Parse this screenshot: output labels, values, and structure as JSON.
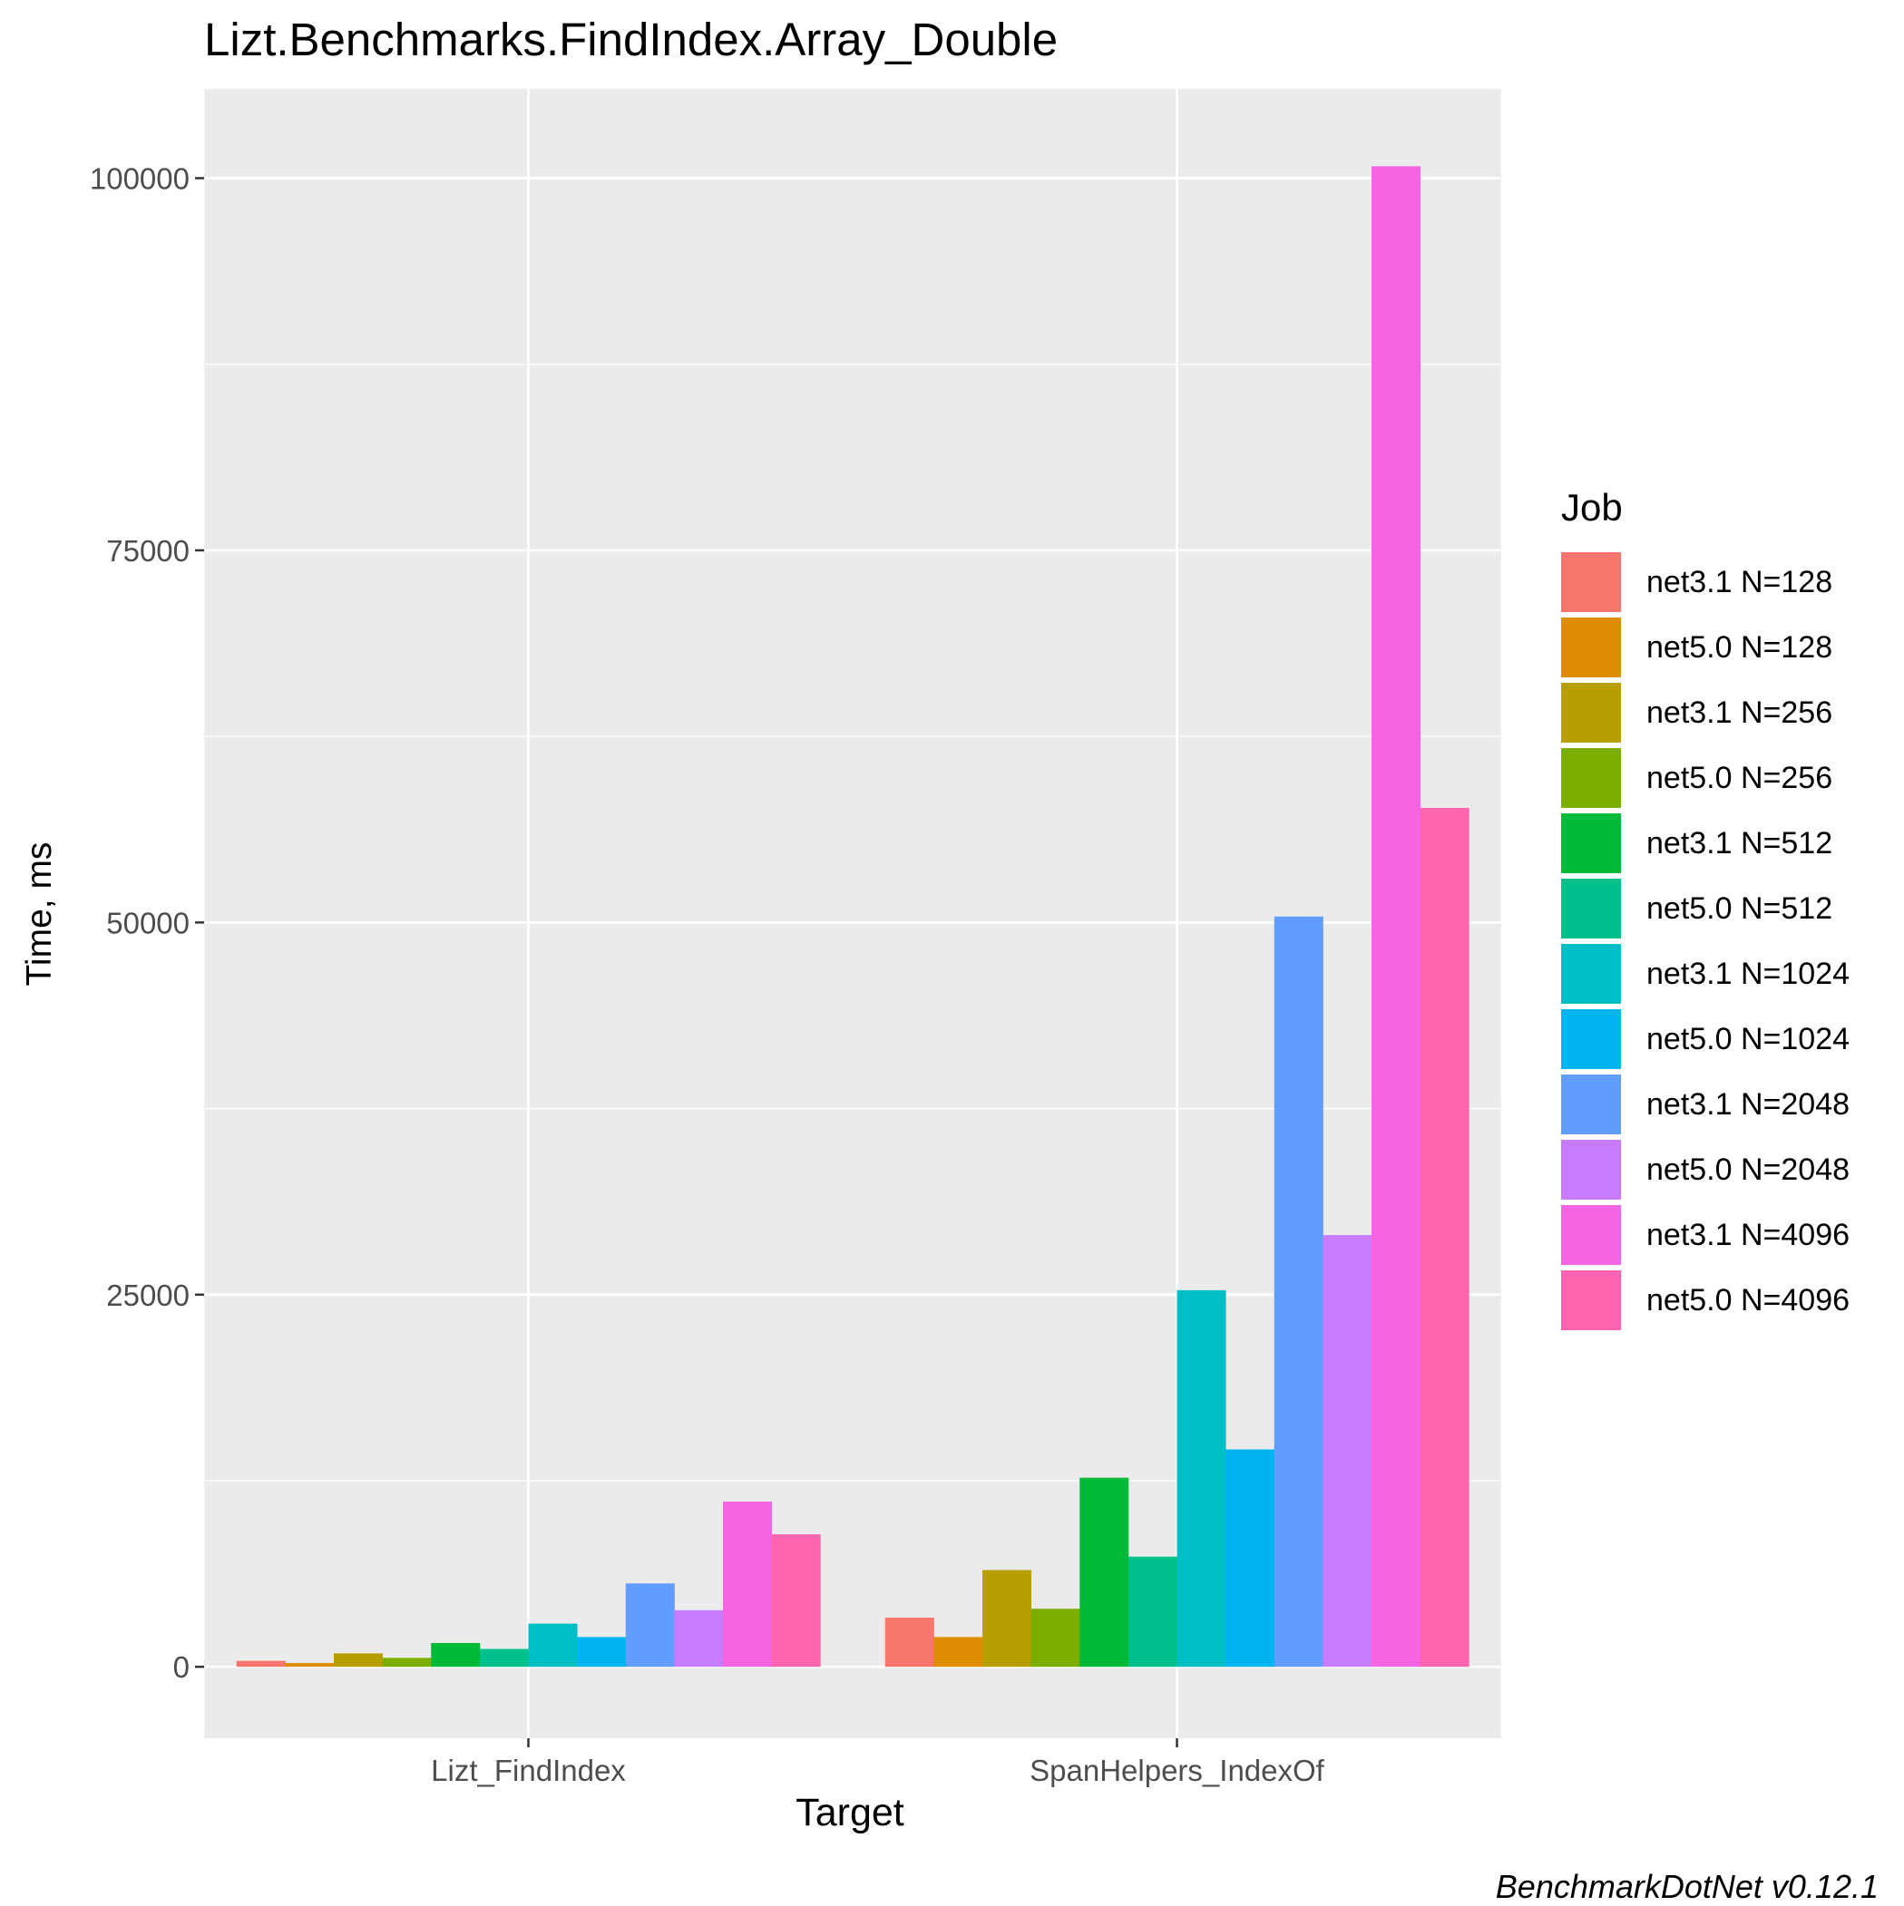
{
  "chart_data": {
    "type": "bar",
    "title": "Lizt.Benchmarks.FindIndex.Array_Double",
    "xlabel": "Target",
    "ylabel": "Time, ms",
    "caption": "BenchmarkDotNet v0.12.1",
    "legend_title": "Job",
    "legend_position": "right",
    "grid": true,
    "ylim": [
      -4800,
      106000
    ],
    "yticks": [
      0,
      25000,
      50000,
      75000,
      100000
    ],
    "yticks_minor": [
      12500,
      37500,
      62500,
      87500
    ],
    "categories": [
      "Lizt_FindIndex",
      "SpanHelpers_IndexOf"
    ],
    "series": [
      {
        "name": "net3.1 N=128",
        "color": "#F8766D",
        "values": [
          400,
          3300
        ]
      },
      {
        "name": "net5.0 N=128",
        "color": "#DE8C00",
        "values": [
          250,
          2000
        ]
      },
      {
        "name": "net3.1 N=256",
        "color": "#B79F00",
        "values": [
          900,
          6500
        ]
      },
      {
        "name": "net5.0 N=256",
        "color": "#7CAE00",
        "values": [
          600,
          3900
        ]
      },
      {
        "name": "net3.1 N=512",
        "color": "#00BA38",
        "values": [
          1600,
          12700
        ]
      },
      {
        "name": "net5.0 N=512",
        "color": "#00C08B",
        "values": [
          1200,
          7400
        ]
      },
      {
        "name": "net3.1 N=1024",
        "color": "#00BFC4",
        "values": [
          2900,
          25300
        ]
      },
      {
        "name": "net5.0 N=1024",
        "color": "#00B4F0",
        "values": [
          2000,
          14600
        ]
      },
      {
        "name": "net3.1 N=2048",
        "color": "#619CFF",
        "values": [
          5600,
          50400
        ]
      },
      {
        "name": "net5.0 N=2048",
        "color": "#C77CFF",
        "values": [
          3800,
          29000
        ]
      },
      {
        "name": "net3.1 N=4096",
        "color": "#F564E3",
        "values": [
          11100,
          100800
        ]
      },
      {
        "name": "net5.0 N=4096",
        "color": "#FF64B0",
        "values": [
          8900,
          57700
        ]
      }
    ]
  }
}
